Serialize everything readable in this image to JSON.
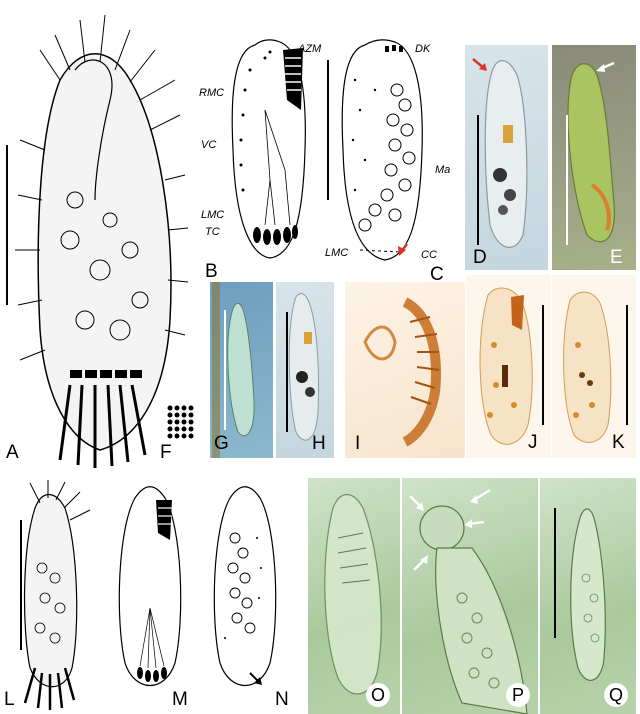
{
  "panels": {
    "A": "A",
    "B": "B",
    "C": "C",
    "D": "D",
    "E": "E",
    "F": "F",
    "G": "G",
    "H": "H",
    "I": "I",
    "J": "J",
    "K": "K",
    "L": "L",
    "M": "M",
    "N": "N",
    "O": "O",
    "P": "P",
    "Q": "Q"
  },
  "annotations": {
    "AZM": "AZM",
    "RMC": "RMC",
    "VC": "VC",
    "LMC_B": "LMC",
    "TC": "TC",
    "DK": "DK",
    "Ma": "Ma",
    "LMC_C": "LMC",
    "CC": "CC"
  },
  "colors": {
    "arrow_red": "#e0302a",
    "arrow_white": "#ffffff"
  }
}
